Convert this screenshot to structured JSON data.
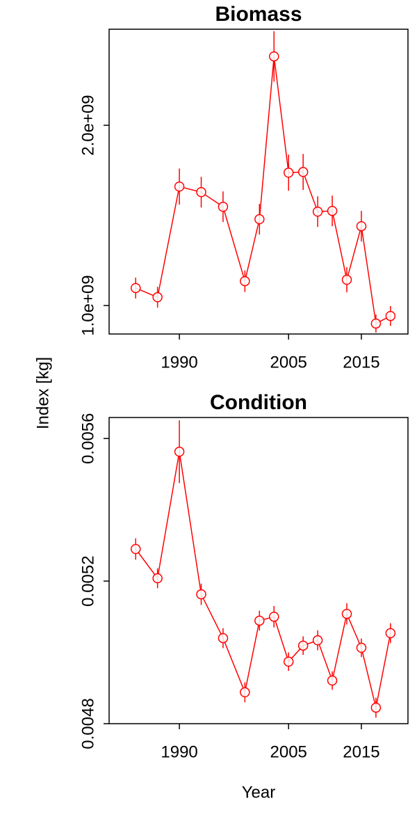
{
  "chart_data": [
    {
      "type": "line",
      "title": "Biomass",
      "ylabel": "Index [kg]",
      "x": [
        1984,
        1987,
        1990,
        1993,
        1996,
        1999,
        2001,
        2003,
        2005,
        2007,
        2009,
        2011,
        2013,
        2015,
        2017,
        2019
      ],
      "series": [
        {
          "color": "#ff0000",
          "values": [
            1097000000,
            1046000000,
            1660000000,
            1629000000,
            1548000000,
            1135000000,
            1479000000,
            2382000000,
            1737000000,
            1741000000,
            1521000000,
            1525000000,
            1143000000,
            1440000000,
            900000000,
            942000000
          ],
          "errors": [
            58000000,
            58000000,
            100000000,
            85000000,
            85000000,
            60000000,
            85000000,
            140000000,
            100000000,
            100000000,
            85000000,
            85000000,
            70000000,
            85000000,
            50000000,
            55000000
          ]
        }
      ],
      "xlim": [
        1980.35,
        2021.4
      ],
      "xticks": [
        1990,
        2005,
        2015
      ],
      "ylim": [
        842000000,
        2533000000
      ],
      "yticks": [
        {
          "value": 1000000000,
          "label": "1.0e+09"
        },
        {
          "value": 2000000000,
          "label": "2.0e+09"
        }
      ]
    },
    {
      "type": "line",
      "title": "Condition",
      "xlabel": "Year",
      "x": [
        1984,
        1987,
        1990,
        1993,
        1996,
        1999,
        2001,
        2003,
        2005,
        2007,
        2009,
        2011,
        2013,
        2015,
        2017,
        2019
      ],
      "series": [
        {
          "color": "#ff0000",
          "values": [
            0.00529,
            0.005208,
            0.005563,
            0.005163,
            0.00504,
            0.004888,
            0.005089,
            0.0051,
            0.004974,
            0.005019,
            0.005034,
            0.004921,
            0.005108,
            0.005013,
            0.004845,
            0.005054
          ],
          "errors": [
            3e-05,
            2.8e-05,
            8.8e-05,
            3e-05,
            2.8e-05,
            2.8e-05,
            2.8e-05,
            3e-05,
            2.6e-05,
            2.6e-05,
            2.8e-05,
            2.6e-05,
            3e-05,
            2.6e-05,
            2.8e-05,
            2.8e-05
          ]
        }
      ],
      "xlim": [
        1980.35,
        2021.4
      ],
      "xticks": [
        1990,
        2005,
        2015
      ],
      "ylim": [
        0.0048,
        0.005659
      ],
      "yticks": [
        0.0048,
        0.0052,
        0.0056
      ]
    }
  ]
}
